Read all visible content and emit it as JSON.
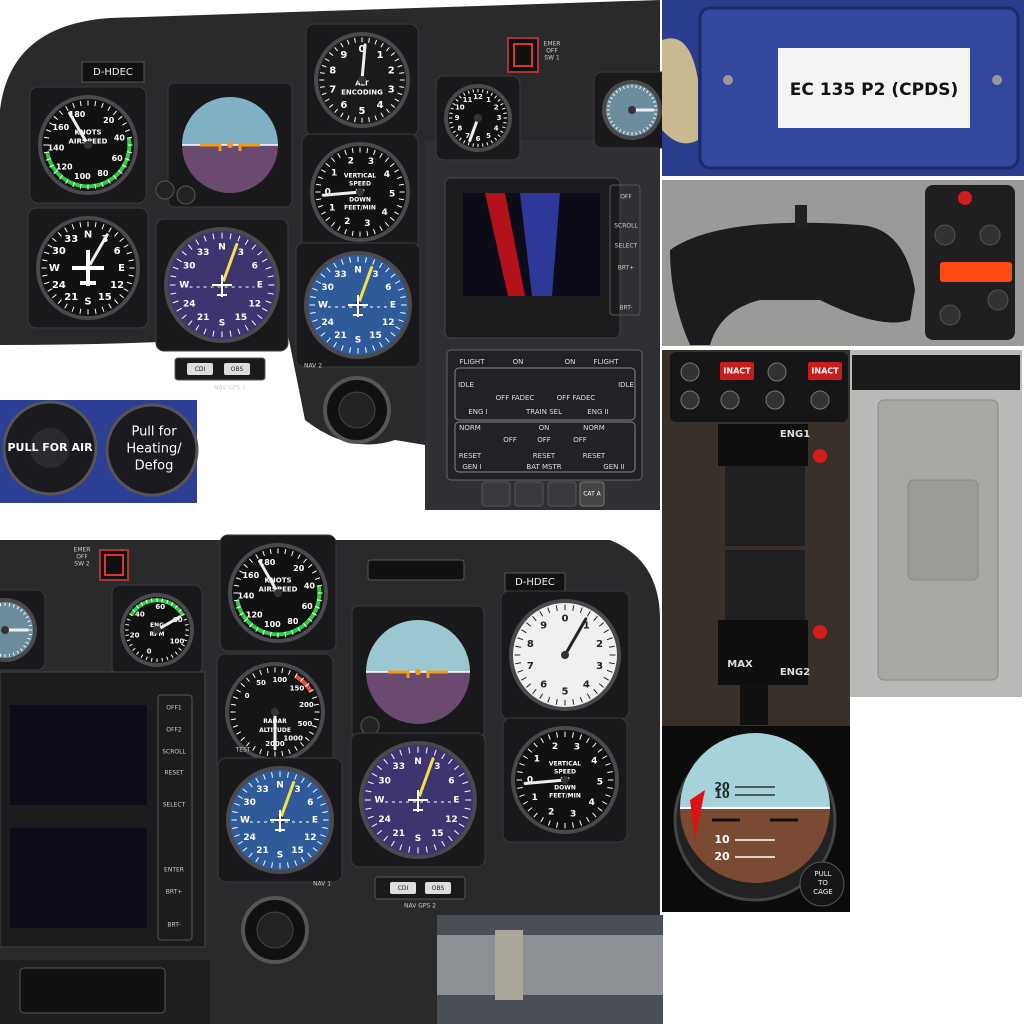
{
  "top_panel": {
    "registration": "D-HDEC",
    "emer_switch": [
      "EMER",
      "OFF",
      "SW 1"
    ],
    "airspeed": {
      "labels": [
        "KNOTS",
        "AIRSPEED"
      ],
      "scale": [
        "20",
        "40",
        "60",
        "80",
        "100",
        "120",
        "140",
        "160",
        "180"
      ]
    },
    "altimeter": {
      "labels": [
        "ALT",
        "ENCODING"
      ],
      "scale": [
        "0",
        "1",
        "2",
        "3",
        "4",
        "5",
        "6",
        "7",
        "8",
        "9"
      ]
    },
    "vertical_speed": {
      "labels": [
        "VERTICAL",
        "SPEED",
        "UP",
        "DOWN",
        "FEET/MIN"
      ],
      "scale": [
        "0",
        "1",
        "2",
        "3",
        "4",
        "5",
        "4",
        "3",
        "2",
        "1"
      ]
    },
    "heading": {
      "scale": [
        "N",
        "3",
        "6",
        "E",
        "12",
        "15",
        "S",
        "21",
        "24",
        "W",
        "30",
        "33"
      ]
    },
    "nav_hsi": {
      "scale": [
        "N",
        "3",
        "6",
        "E",
        "12",
        "15",
        "S",
        "21",
        "24",
        "W",
        "30",
        "33"
      ]
    },
    "clock": {
      "scale": [
        "12",
        "1",
        "2",
        "3",
        "4",
        "5",
        "6",
        "7",
        "8",
        "9",
        "10",
        "11"
      ]
    },
    "display_buttons": [
      "OFF",
      "SCROLL",
      "SELECT",
      "BRT+",
      "BRT-"
    ],
    "engine_panel": {
      "flight": "FLIGHT",
      "on": "ON",
      "idle": "IDLE",
      "off_fadec": "OFF FADEC",
      "eng1": "ENG I",
      "train_sel": "TRAIN SEL",
      "eng2": "ENG II",
      "norm": "NORM",
      "off": "OFF",
      "reset": "RESET",
      "gen1": "GEN I",
      "bat_mstr": "BAT MSTR",
      "gen2": "GEN II"
    },
    "cat_button": "CAT A",
    "nav_buttons": [
      "CDI",
      "OBS"
    ],
    "nav_label": "NAV GPS 1",
    "nav2_label": "NAV 2"
  },
  "knob_inset": {
    "left": "PULL FOR AIR",
    "right": [
      "Pull for",
      "Heating/",
      "Defog"
    ]
  },
  "blue_box": {
    "label": "EC 135 P2 (CPDS)"
  },
  "collective": {
    "buttons": [
      "INACT",
      "INACT"
    ],
    "upper": "ENG1",
    "lower": [
      "MAX",
      "ENG2"
    ]
  },
  "attitude_indicator": {
    "pitch": [
      "20",
      "10",
      "10",
      "20"
    ],
    "cage_knob": [
      "PULL",
      "TO",
      "CAGE"
    ]
  },
  "bottom_panel": {
    "emer_switch": [
      "EMER",
      "OFF",
      "SW 2"
    ],
    "registration": "D-HDEC",
    "airspeed": {
      "labels": [
        "KNOTS",
        "AIRSPEED"
      ],
      "scale": [
        "20",
        "40",
        "60",
        "80",
        "100",
        "120",
        "140",
        "160",
        "180"
      ]
    },
    "rotor_rpm": {
      "labels": [
        "ENG",
        "RPM"
      ],
      "scale": [
        "0",
        "20",
        "40",
        "60",
        "80",
        "100"
      ]
    },
    "radar_altitude": {
      "labels": [
        "RADAR",
        "ALTITUDE"
      ],
      "scale": [
        "0",
        "50",
        "100",
        "150",
        "200",
        "500",
        "1000",
        "2000"
      ]
    },
    "test_label": "TEST",
    "altimeter": {
      "scale": [
        "0",
        "1",
        "2",
        "3",
        "4",
        "5",
        "6",
        "7",
        "8",
        "9"
      ]
    },
    "vertical_speed": {
      "labels": [
        "VERTICAL",
        "SPEED",
        "UP",
        "DOWN",
        "FEET/MIN"
      ],
      "scale": [
        "0",
        "1",
        "2",
        "3",
        "4",
        "5",
        "4",
        "3",
        "2",
        "1"
      ]
    },
    "nav_hsi": {
      "scale": [
        "N",
        "3",
        "6",
        "E",
        "12",
        "15",
        "S",
        "21",
        "24",
        "W",
        "30",
        "33"
      ]
    },
    "gps_hsi": {
      "scale": [
        "N",
        "3",
        "6",
        "E",
        "12",
        "15",
        "S",
        "21",
        "24",
        "W",
        "30",
        "33"
      ]
    },
    "display_buttons": [
      "OFF1",
      "OFF2",
      "SCROLL",
      "RESET",
      "SELECT",
      "ENTER",
      "BRT+",
      "BRT-"
    ],
    "nav_buttons": [
      "CDI",
      "OBS"
    ],
    "nav_label": "NAV GPS 2",
    "nav1_label": "NAV 1"
  }
}
